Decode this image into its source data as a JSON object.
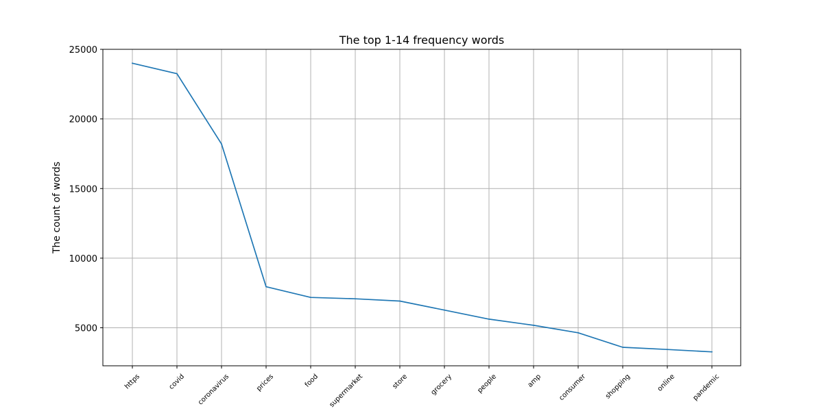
{
  "chart_data": {
    "type": "line",
    "title": "The top 1-14 frequency words",
    "xlabel": "",
    "ylabel": "The count of words",
    "categories": [
      "https",
      "covid",
      "coronavirus",
      "prices",
      "food",
      "supermarket",
      "store",
      "grocery",
      "people",
      "amp",
      "consumer",
      "shopping",
      "online",
      "pandemic"
    ],
    "series": [
      {
        "values": [
          24000,
          23250,
          18200,
          7950,
          7180,
          7080,
          6920,
          6270,
          5620,
          5180,
          4640,
          3600,
          3440,
          3270
        ]
      }
    ],
    "yticks": [
      5000,
      10000,
      15000,
      20000,
      25000
    ],
    "ytick_labels": [
      "5000",
      "10000",
      "15000",
      "20000",
      "25000"
    ],
    "ylim": [
      2270,
      25000
    ],
    "grid": true,
    "colors": {
      "line": "#1f77b4",
      "grid": "#b0b0b0",
      "frame": "#000000"
    }
  }
}
